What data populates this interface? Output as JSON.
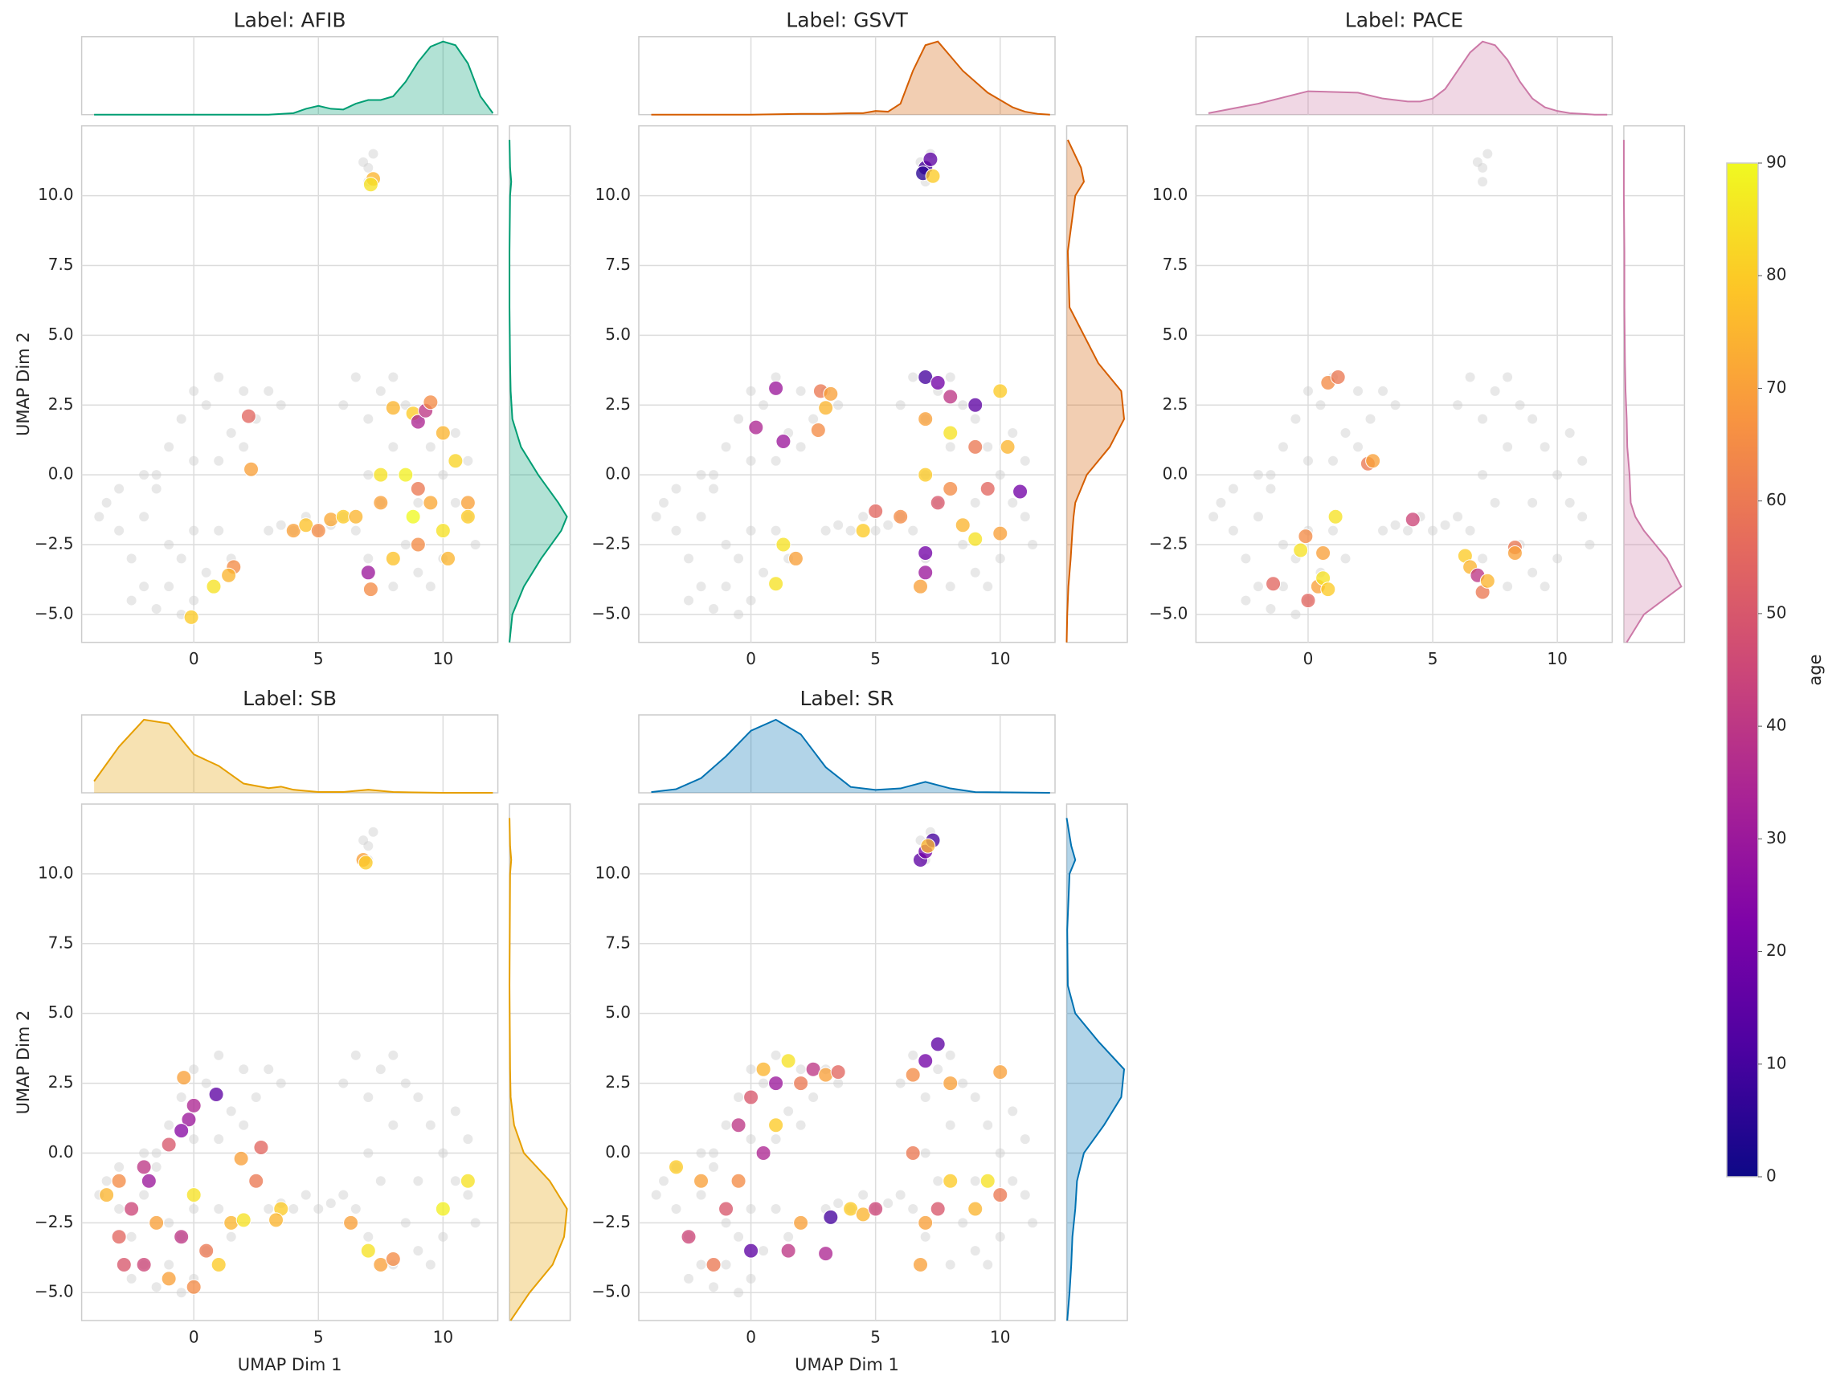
{
  "background": {
    "color": "#cccccc",
    "x": [
      -3.5,
      -3,
      -2.5,
      -2,
      -1.5,
      -1,
      -0.5,
      0,
      -3,
      -2,
      -1,
      0.5,
      1,
      -2.5,
      -0.5,
      0,
      1.5,
      -1.5,
      -3.8,
      -2,
      -1,
      -0.5,
      0,
      0.5,
      1,
      1.5,
      2,
      2.5,
      3,
      3.5,
      0,
      1,
      -1.5,
      2,
      3,
      3.5,
      4,
      4.5,
      5,
      5.5,
      6,
      6,
      6.5,
      7,
      7.5,
      8,
      8.5,
      9,
      9.5,
      10,
      10.5,
      11,
      11.3,
      10,
      9,
      8,
      7,
      6.5,
      7,
      8,
      9,
      10.5,
      11,
      7.5,
      8.5,
      9.5,
      7,
      7,
      7.2,
      6.8
    ],
    "y": [
      -1,
      -2,
      -3,
      -4,
      -4.8,
      -4,
      -3,
      -2,
      -0.5,
      -1.5,
      -2.5,
      -3.5,
      -2,
      -4.5,
      -5,
      -4.5,
      -3,
      -0.5,
      -1.5,
      0,
      1,
      2,
      3,
      2.5,
      3.5,
      1.5,
      3,
      2,
      3,
      2.5,
      0.5,
      0.5,
      0,
      1,
      -2,
      -1.8,
      -2,
      -1.5,
      -2,
      -1.8,
      -1.5,
      2.5,
      3.5,
      2,
      3,
      3.5,
      2.5,
      2,
      1,
      0,
      -1,
      -1.5,
      -2.5,
      -3,
      -3.5,
      -4,
      -3,
      -2,
      0,
      1,
      -1,
      1.5,
      0.5,
      -1,
      -2.5,
      -4,
      10.5,
      11,
      11.5,
      11.2
    ]
  },
  "chart_data": [
    {
      "type": "scatter",
      "title": "Label: AFIB",
      "y_label": "UMAP Dim 2",
      "marginal_color": "#009e73",
      "x": [
        7.2,
        7.1,
        2.2,
        2.3,
        0.8,
        -0.1,
        1.6,
        1.4,
        4,
        4.5,
        5,
        5.5,
        6,
        6.5,
        7.5,
        8,
        8.8,
        9,
        9.3,
        9.5,
        10,
        10.5,
        11,
        10,
        9,
        8,
        7.1,
        7,
        8.5,
        9.5,
        11,
        9,
        7.5,
        10.2,
        8.8
      ],
      "y": [
        10.6,
        10.4,
        2.1,
        0.2,
        -4,
        -5.1,
        -3.3,
        -3.6,
        -2,
        -1.8,
        -2,
        -1.6,
        -1.5,
        -1.5,
        -1,
        2.4,
        2.2,
        1.9,
        2.3,
        2.6,
        1.5,
        0.5,
        -1,
        -2,
        -2.5,
        -3,
        -4.1,
        -3.5,
        0,
        -1,
        -1.5,
        -0.5,
        0,
        -3,
        -1.5
      ],
      "age": [
        75,
        85,
        55,
        70,
        85,
        80,
        65,
        75,
        70,
        78,
        65,
        72,
        80,
        75,
        70,
        75,
        80,
        35,
        40,
        65,
        75,
        82,
        70,
        85,
        65,
        78,
        65,
        30,
        88,
        72,
        80,
        60,
        85,
        75,
        90
      ],
      "xlim": [
        -4.5,
        12.2
      ],
      "ylim": [
        -6,
        12.5
      ],
      "xticks": [
        0,
        5,
        10
      ],
      "yticks": [
        {
          "value": -5,
          "label": "−5.0"
        },
        {
          "value": -2.5,
          "label": "−2.5"
        },
        {
          "value": 0,
          "label": "0.0"
        },
        {
          "value": 2.5,
          "label": "2.5"
        },
        {
          "value": 5,
          "label": "5.0"
        },
        {
          "value": 7.5,
          "label": "7.5"
        },
        {
          "value": 10,
          "label": "10.0"
        }
      ],
      "kde_x": {
        "x": [
          -4,
          -2,
          0,
          2,
          3,
          4,
          4.5,
          5,
          5.5,
          6,
          6.5,
          7,
          7.5,
          8,
          8.5,
          9,
          9.5,
          10,
          10.5,
          11,
          11.5,
          12
        ],
        "density": [
          0,
          0,
          0,
          0,
          0,
          0.02,
          0.08,
          0.12,
          0.08,
          0.07,
          0.15,
          0.2,
          0.2,
          0.25,
          0.45,
          0.72,
          0.93,
          1.0,
          0.95,
          0.7,
          0.25,
          0.02
        ]
      },
      "kde_y": {
        "y": [
          -6,
          -5,
          -4,
          -3,
          -2,
          -1.5,
          -1,
          0,
          1,
          2,
          3,
          4,
          6,
          8,
          10,
          10.5,
          11,
          12
        ],
        "density": [
          0,
          0.05,
          0.25,
          0.55,
          0.9,
          1.0,
          0.85,
          0.5,
          0.2,
          0.05,
          0.02,
          0.01,
          0,
          0,
          0.01,
          0.03,
          0.01,
          0
        ]
      }
    },
    {
      "type": "scatter",
      "title": "Label: GSVT",
      "marginal_color": "#d55e00",
      "x": [
        7,
        7.2,
        6.9,
        7.3,
        1,
        0.2,
        1.3,
        2.8,
        3.2,
        3,
        2.7,
        1.3,
        1.8,
        1,
        4.5,
        5,
        6,
        7,
        7.5,
        8,
        9,
        10,
        7,
        8,
        9,
        10.3,
        7,
        8,
        9.5,
        10.8,
        7.5,
        8.5,
        9,
        10,
        7,
        7,
        6.8
      ],
      "y": [
        11,
        11.3,
        10.8,
        10.7,
        3.1,
        1.7,
        1.2,
        3,
        2.9,
        2.4,
        1.6,
        -2.5,
        -3,
        -3.9,
        -2,
        -1.3,
        -1.5,
        3.5,
        3.3,
        2.8,
        2.5,
        3,
        2,
        1.5,
        1,
        1,
        0,
        -0.5,
        -0.5,
        -0.6,
        -1,
        -1.8,
        -2.3,
        -2.1,
        -2.8,
        -3.5,
        -4
      ],
      "age": [
        10,
        15,
        5,
        80,
        30,
        35,
        30,
        60,
        70,
        75,
        65,
        85,
        70,
        85,
        80,
        55,
        65,
        10,
        20,
        40,
        15,
        80,
        70,
        85,
        60,
        75,
        80,
        65,
        55,
        20,
        50,
        75,
        85,
        70,
        20,
        30,
        70
      ],
      "xlim": [
        -4.5,
        12.2
      ],
      "ylim": [
        -6,
        12.5
      ],
      "xticks": [
        0,
        5,
        10
      ],
      "yticks": [
        {
          "value": -5,
          "label": "−5.0"
        },
        {
          "value": -2.5,
          "label": "−2.5"
        },
        {
          "value": 0,
          "label": "0.0"
        },
        {
          "value": 2.5,
          "label": "2.5"
        },
        {
          "value": 5,
          "label": "5.0"
        },
        {
          "value": 7.5,
          "label": "7.5"
        },
        {
          "value": 10,
          "label": "10.0"
        }
      ],
      "kde_x": {
        "x": [
          -4,
          -2,
          0,
          2,
          3,
          4,
          4.5,
          5,
          5.5,
          6,
          6.5,
          7,
          7.5,
          8,
          8.5,
          9,
          9.5,
          10,
          10.5,
          11,
          11.5,
          12
        ],
        "density": [
          0,
          0,
          0,
          0.01,
          0.01,
          0.02,
          0.02,
          0.05,
          0.04,
          0.15,
          0.6,
          0.95,
          1.0,
          0.8,
          0.6,
          0.45,
          0.3,
          0.2,
          0.1,
          0.04,
          0.01,
          0
        ]
      },
      "kde_y": {
        "y": [
          -6,
          -5,
          -4,
          -3,
          -2,
          -1.5,
          -1,
          0,
          1,
          2,
          3,
          4,
          6,
          8,
          10,
          10.5,
          11,
          12
        ],
        "density": [
          0,
          0.01,
          0.03,
          0.07,
          0.1,
          0.12,
          0.15,
          0.35,
          0.75,
          1.0,
          0.95,
          0.55,
          0.05,
          0.02,
          0.15,
          0.3,
          0.25,
          0.02
        ]
      }
    },
    {
      "type": "scatter",
      "title": "Label: PACE",
      "marginal_color": "#cc79a7",
      "x": [
        0.8,
        1.2,
        2.4,
        2.6,
        4.2,
        1.1,
        -0.1,
        -0.3,
        -1.4,
        0,
        0.4,
        0.6,
        0.8,
        0.6,
        6.3,
        6.5,
        6.8,
        7,
        7.2,
        8.3,
        8.3
      ],
      "y": [
        3.3,
        3.5,
        0.4,
        0.5,
        -1.6,
        -1.5,
        -2.2,
        -2.7,
        -3.9,
        -4.5,
        -4,
        -3.7,
        -4.1,
        -2.8,
        -2.9,
        -3.3,
        -3.6,
        -4.2,
        -3.8,
        -2.6,
        -2.8
      ],
      "age": [
        65,
        60,
        60,
        70,
        45,
        85,
        65,
        85,
        55,
        55,
        70,
        85,
        80,
        70,
        80,
        75,
        40,
        60,
        75,
        60,
        70
      ],
      "xlim": [
        -4.5,
        12.2
      ],
      "ylim": [
        -6,
        12.5
      ],
      "xticks": [
        0,
        5,
        10
      ],
      "yticks": [
        {
          "value": -5,
          "label": "−5.0"
        },
        {
          "value": -2.5,
          "label": "−2.5"
        },
        {
          "value": 0,
          "label": "0.0"
        },
        {
          "value": 2.5,
          "label": "2.5"
        },
        {
          "value": 5,
          "label": "5.0"
        },
        {
          "value": 7.5,
          "label": "7.5"
        },
        {
          "value": 10,
          "label": "10.0"
        }
      ],
      "kde_x": {
        "x": [
          -4,
          -2,
          0,
          2,
          3,
          4,
          4.5,
          5,
          5.5,
          6,
          6.5,
          7,
          7.5,
          8,
          8.5,
          9,
          9.5,
          10,
          10.5,
          11,
          11.5,
          12
        ],
        "density": [
          0.02,
          0.15,
          0.32,
          0.3,
          0.22,
          0.18,
          0.18,
          0.22,
          0.35,
          0.6,
          0.85,
          1.0,
          0.95,
          0.75,
          0.45,
          0.22,
          0.1,
          0.05,
          0.02,
          0.01,
          0,
          0
        ]
      },
      "kde_y": {
        "y": [
          -6,
          -5,
          -4,
          -3,
          -2,
          -1.5,
          -1,
          0,
          1,
          2,
          3,
          4,
          6,
          8,
          10,
          10.5,
          11,
          12
        ],
        "density": [
          0.05,
          0.35,
          1.0,
          0.75,
          0.35,
          0.2,
          0.12,
          0.1,
          0.06,
          0.05,
          0.03,
          0.02,
          0.01,
          0.01,
          0,
          0,
          0,
          0
        ]
      }
    },
    {
      "type": "scatter",
      "title": "Label: SB",
      "x_label": "UMAP Dim 1",
      "y_label": "UMAP Dim 2",
      "marginal_color": "#e69f00",
      "x": [
        6.8,
        6.9,
        -0.4,
        0,
        0.9,
        -0.2,
        -0.5,
        -1,
        -2,
        -3,
        -3.5,
        -2.5,
        -1.5,
        -0.5,
        0.5,
        1,
        -3,
        -2,
        -1,
        0,
        1.5,
        2,
        2.5,
        2.7,
        1.9,
        3.5,
        3.3,
        6.3,
        7,
        7.5,
        8,
        11,
        10,
        -2.8,
        -1.8,
        0
      ],
      "y": [
        10.5,
        10.4,
        2.7,
        1.7,
        2.1,
        1.2,
        0.8,
        0.3,
        -0.5,
        -1,
        -1.5,
        -2,
        -2.5,
        -3,
        -3.5,
        -4,
        -3,
        -4,
        -4.5,
        -4.8,
        -2.5,
        -2.4,
        -1,
        0.2,
        -0.2,
        -2,
        -2.4,
        -2.5,
        -3.5,
        -4,
        -3.8,
        -1,
        -2,
        -4,
        -1,
        -1.5
      ],
      "age": [
        70,
        80,
        70,
        35,
        15,
        30,
        25,
        50,
        40,
        65,
        75,
        45,
        70,
        40,
        60,
        80,
        55,
        45,
        70,
        65,
        75,
        85,
        60,
        55,
        70,
        80,
        75,
        70,
        85,
        70,
        65,
        85,
        88,
        50,
        30,
        85
      ],
      "xlim": [
        -4.5,
        12.2
      ],
      "ylim": [
        -6,
        12.5
      ],
      "xticks": [
        0,
        5,
        10
      ],
      "yticks": [
        {
          "value": -5,
          "label": "−5.0"
        },
        {
          "value": -2.5,
          "label": "−2.5"
        },
        {
          "value": 0,
          "label": "0.0"
        },
        {
          "value": 2.5,
          "label": "2.5"
        },
        {
          "value": 5,
          "label": "5.0"
        },
        {
          "value": 7.5,
          "label": "7.5"
        },
        {
          "value": 10,
          "label": "10.0"
        }
      ],
      "kde_x": {
        "x": [
          -4,
          -3,
          -2,
          -1,
          0,
          1,
          2,
          3,
          3.5,
          4,
          5,
          6,
          7,
          8,
          10,
          12
        ],
        "density": [
          0.15,
          0.6,
          0.95,
          0.9,
          0.5,
          0.35,
          0.12,
          0.06,
          0.08,
          0.04,
          0.01,
          0.01,
          0.04,
          0.01,
          0,
          0
        ]
      },
      "kde_y": {
        "y": [
          -6,
          -5,
          -4,
          -3,
          -2,
          -1,
          0,
          1,
          2,
          3,
          6,
          10,
          10.5,
          11,
          12
        ],
        "density": [
          0.02,
          0.35,
          0.75,
          0.95,
          1.0,
          0.7,
          0.25,
          0.08,
          0.02,
          0.01,
          0,
          0.01,
          0.03,
          0.01,
          0
        ]
      }
    },
    {
      "type": "scatter",
      "title": "Label: SR",
      "x_label": "UMAP Dim 1",
      "marginal_color": "#0072b2",
      "x": [
        6.8,
        7,
        7.3,
        7.1,
        -0.5,
        0,
        0.5,
        1,
        1.5,
        2,
        2.5,
        3,
        3.5,
        1,
        0.5,
        -0.5,
        -1,
        -2,
        -3,
        -2.5,
        -1.5,
        0,
        1.5,
        2,
        3.2,
        4,
        4.5,
        6.5,
        7,
        7.5,
        8,
        6.5,
        7,
        7.5,
        8,
        9,
        10,
        9.5,
        10,
        6.8,
        3,
        5
      ],
      "y": [
        10.5,
        10.8,
        11.2,
        11,
        1,
        2,
        3,
        2.5,
        3.3,
        2.5,
        3,
        2.8,
        2.9,
        1,
        0,
        -1,
        -2,
        -1,
        -0.5,
        -3,
        -4,
        -3.5,
        -3.5,
        -2.5,
        -2.3,
        -2,
        -2.2,
        2.8,
        3.3,
        3.9,
        2.5,
        0,
        -2.5,
        -2,
        -1,
        -2,
        -1.5,
        -1,
        2.9,
        -4,
        -3.6,
        -2
      ],
      "age": [
        15,
        20,
        10,
        75,
        40,
        50,
        75,
        30,
        85,
        60,
        40,
        70,
        55,
        80,
        35,
        65,
        50,
        70,
        80,
        45,
        60,
        15,
        40,
        70,
        10,
        80,
        75,
        65,
        20,
        15,
        70,
        60,
        70,
        50,
        80,
        75,
        60,
        85,
        70,
        70,
        35,
        45
      ],
      "xlim": [
        -4.5,
        12.2
      ],
      "ylim": [
        -6,
        12.5
      ],
      "xticks": [
        0,
        5,
        10
      ],
      "yticks": [
        {
          "value": -5,
          "label": "−5.0"
        },
        {
          "value": -2.5,
          "label": "−2.5"
        },
        {
          "value": 0,
          "label": "0.0"
        },
        {
          "value": 2.5,
          "label": "2.5"
        },
        {
          "value": 5,
          "label": "5.0"
        },
        {
          "value": 7.5,
          "label": "7.5"
        },
        {
          "value": 10,
          "label": "10.0"
        }
      ],
      "kde_x": {
        "x": [
          -4,
          -3,
          -2,
          -1,
          0,
          1,
          2,
          3,
          4,
          5,
          6,
          7,
          8,
          9,
          12
        ],
        "density": [
          0.01,
          0.05,
          0.2,
          0.5,
          0.85,
          1.0,
          0.8,
          0.35,
          0.08,
          0.04,
          0.06,
          0.15,
          0.06,
          0.01,
          0
        ]
      },
      "kde_y": {
        "y": [
          -6,
          -5,
          -4,
          -3,
          -2,
          -1,
          0,
          1,
          2,
          3,
          4,
          5,
          6,
          8,
          10,
          10.5,
          11,
          12
        ],
        "density": [
          0.01,
          0.05,
          0.08,
          0.1,
          0.15,
          0.18,
          0.3,
          0.65,
          0.95,
          1.0,
          0.55,
          0.15,
          0.02,
          0.01,
          0.05,
          0.15,
          0.08,
          0
        ]
      }
    },
    {
      "type": "colorbar",
      "label": "age",
      "colormap": "plasma",
      "clim": [
        0,
        90
      ],
      "ticks": [
        0,
        10,
        20,
        30,
        40,
        50,
        60,
        70,
        80,
        90
      ]
    }
  ]
}
